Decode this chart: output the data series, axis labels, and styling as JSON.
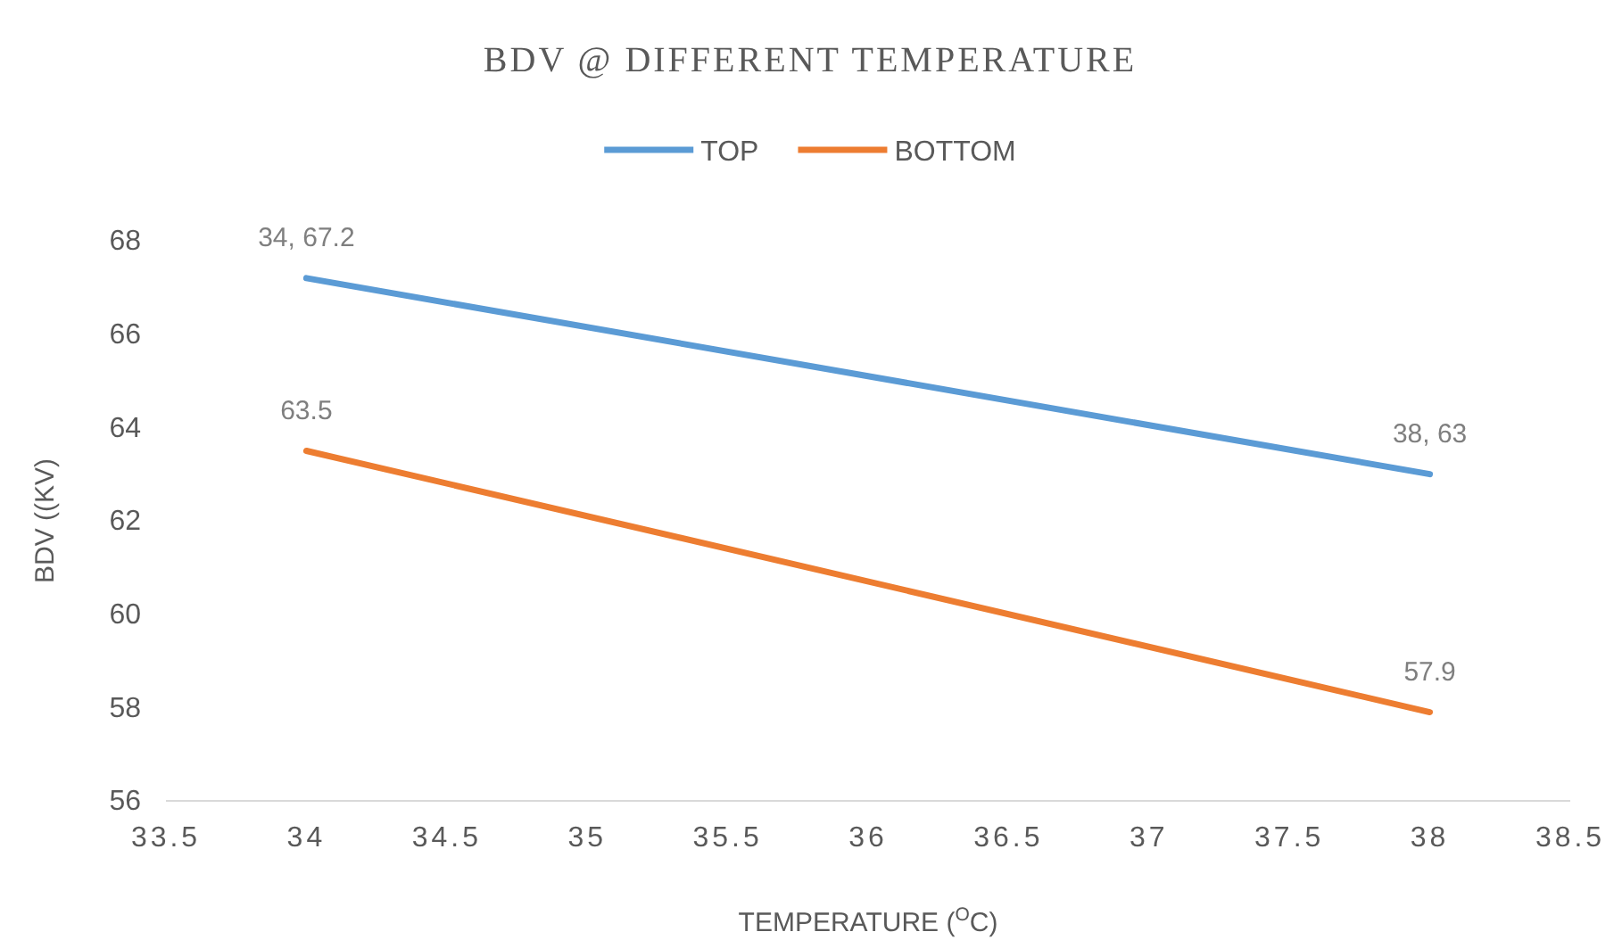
{
  "chart_data": {
    "type": "line",
    "title": "BDV @ DIFFERENT TEMPERATURE",
    "xlabel": "TEMPERATURE ($^{O}$C)",
    "ylabel": "BDV ((KV)",
    "x": [
      34,
      38
    ],
    "series": [
      {
        "name": "TOP",
        "color": "#5b9bd5",
        "values": [
          67.2,
          63
        ],
        "value_labels": [
          "34, 67.2",
          "38, 63"
        ]
      },
      {
        "name": "BOTTOM",
        "color": "#ed7d31",
        "values": [
          63.5,
          57.9
        ],
        "value_labels": [
          "63.5",
          "57.9"
        ]
      }
    ],
    "xlim": [
      33.5,
      38.5
    ],
    "xticks": [
      33.5,
      34,
      34.5,
      35,
      35.5,
      36,
      36.5,
      37,
      37.5,
      38,
      38.5
    ],
    "ylim": [
      56,
      68
    ],
    "yticks": [
      56,
      58,
      60,
      62,
      64,
      66,
      68
    ],
    "grid": false,
    "legend": "top",
    "marker": "none",
    "line_style": "solid"
  }
}
